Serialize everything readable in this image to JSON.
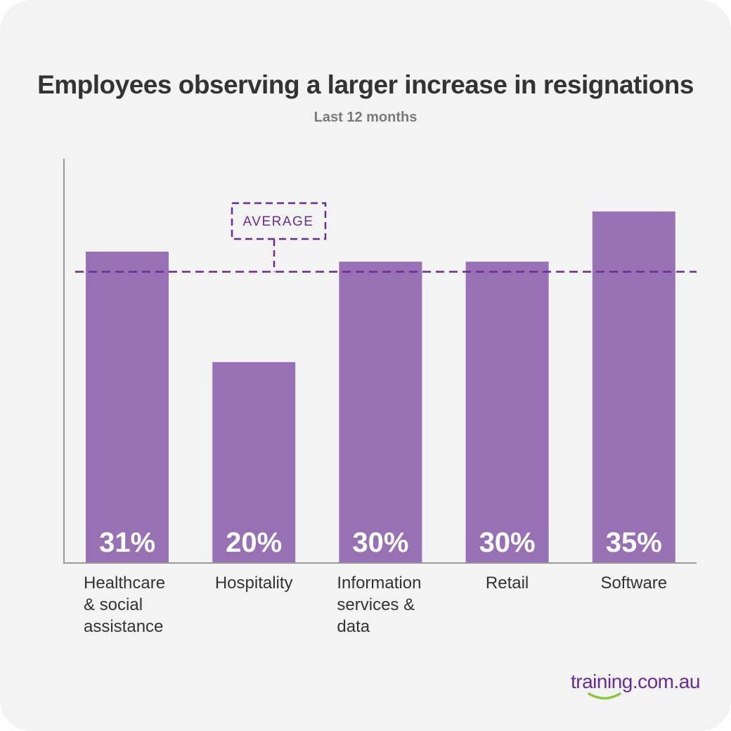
{
  "title": "Employees observing a larger increase in resignations",
  "subtitle": "Last 12 months",
  "brand": {
    "logo_text": "training.com.au",
    "logo_color": "#6a2c91",
    "smile_color": "#8cc63f"
  },
  "colors": {
    "bar": "#9871b5",
    "average_line": "#6a2c91",
    "axis": "#999999",
    "value_label": "#ffffff"
  },
  "chart_data": {
    "type": "bar",
    "title": "Employees observing a larger increase in resignations",
    "subtitle": "Last 12 months",
    "xlabel": "",
    "ylabel": "",
    "categories": [
      "Healthcare & social assistance",
      "Hospitality",
      "Information services & data",
      "Retail",
      "Software"
    ],
    "category_lines": [
      [
        "Healthcare",
        "& social",
        "assistance"
      ],
      [
        "Hospitality"
      ],
      [
        "Information",
        "services &",
        "data"
      ],
      [
        "Retail"
      ],
      [
        "Software"
      ]
    ],
    "values": [
      31,
      20,
      30,
      30,
      35
    ],
    "value_labels": [
      "31%",
      "20%",
      "30%",
      "30%",
      "35%"
    ],
    "unit": "%",
    "ylim": [
      0,
      40
    ],
    "grid": false,
    "average": {
      "label": "AVERAGE",
      "value": 29
    }
  }
}
